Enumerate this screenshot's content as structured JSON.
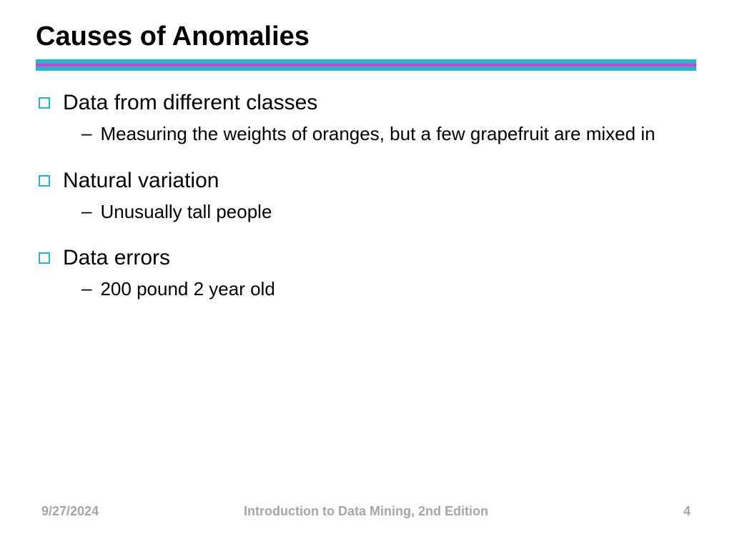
{
  "slide": {
    "title": "Causes of Anomalies",
    "title_fontsize": 38,
    "title_color": "#000000",
    "rule_colors": {
      "top": "#26b6c9",
      "mid": "#d63cd6",
      "bot": "#26b6c9"
    },
    "bullet_square_color": "#26b6c9",
    "lvl1_fontsize": 30,
    "lvl2_fontsize": 26,
    "dash_glyph": "–",
    "items": [
      {
        "text": "Data from different classes",
        "sub": [
          "Measuring the weights of oranges, but a few grapefruit are mixed in"
        ]
      },
      {
        "text": "Natural variation",
        "sub": [
          "Unusually tall people"
        ]
      },
      {
        "text": "Data errors",
        "sub": [
          "200 pound 2 year old"
        ]
      }
    ]
  },
  "footer": {
    "date": "9/27/2024",
    "center": "Introduction to Data Mining, 2nd Edition",
    "page": "4",
    "color": "#a6a6a6",
    "fontsize": 18
  }
}
